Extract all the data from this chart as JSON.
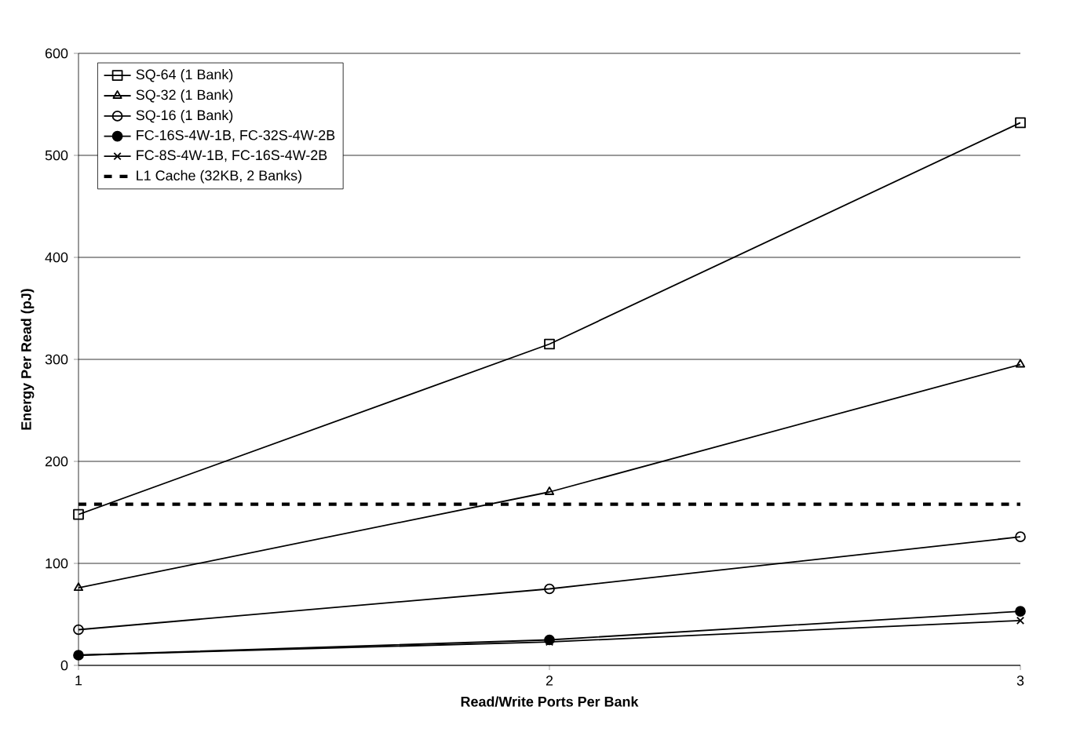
{
  "chart_data": {
    "type": "line",
    "xlabel": "Read/Write Ports Per Bank",
    "ylabel": "Energy Per Read (pJ)",
    "x": [
      1,
      2,
      3
    ],
    "xlim": [
      1,
      3
    ],
    "xticks": [
      1,
      2,
      3
    ],
    "ylim": [
      0,
      600
    ],
    "yticks": [
      0,
      100,
      200,
      300,
      400,
      500,
      600
    ],
    "grid": "y",
    "legend": "top left",
    "line_style": "solid",
    "series": [
      {
        "name": "SQ-64 (1 Bank)",
        "color": "#000000",
        "marker": "square",
        "values": [
          148,
          315,
          532
        ]
      },
      {
        "name": "SQ-32 (1 Bank)",
        "color": "#000000",
        "marker": "triangle",
        "values": [
          76,
          170,
          295
        ]
      },
      {
        "name": "SQ-16 (1 Bank)",
        "color": "#000000",
        "marker": "circle",
        "values": [
          35,
          75,
          126
        ]
      },
      {
        "name": "FC-16S-4W-1B, FC-32S-4W-2B",
        "color": "#000000",
        "marker": "filled circle",
        "values": [
          10,
          25,
          53
        ]
      },
      {
        "name": "FC-8S-4W-1B, FC-16S-4W-2B",
        "color": "#000000",
        "marker": "cross",
        "values": [
          10,
          23,
          44
        ]
      }
    ],
    "ref_lines": [
      {
        "axis": "y",
        "value": 158,
        "label": "L1 Cache (32KB, 2 Banks)",
        "color": "#000000",
        "line_style": "dashed"
      }
    ]
  }
}
